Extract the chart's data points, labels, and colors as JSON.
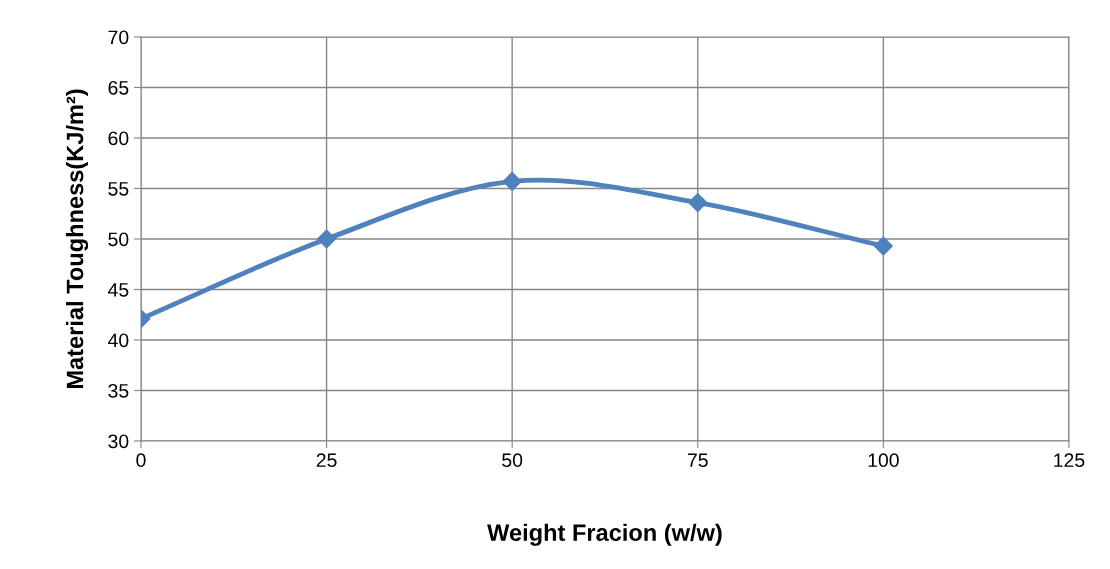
{
  "chart_data": {
    "type": "line",
    "xlabel": "Weight Fracion (w/w)",
    "ylabel": "Material Toughness(KJ/m²)",
    "x": [
      0,
      25,
      50,
      75,
      100
    ],
    "series": [
      {
        "color": "#4f81bd",
        "values": [
          42.1,
          50.0,
          55.7,
          53.6,
          49.3
        ]
      }
    ],
    "xlim": [
      0,
      125
    ],
    "xticks": [
      0,
      25,
      50,
      75,
      100,
      125
    ],
    "ylim": [
      30,
      70
    ],
    "yticks": [
      30,
      35,
      40,
      45,
      50,
      55,
      60,
      65,
      70
    ],
    "grid": true,
    "marker": "diamond",
    "line_style": "solid",
    "legend": false
  }
}
